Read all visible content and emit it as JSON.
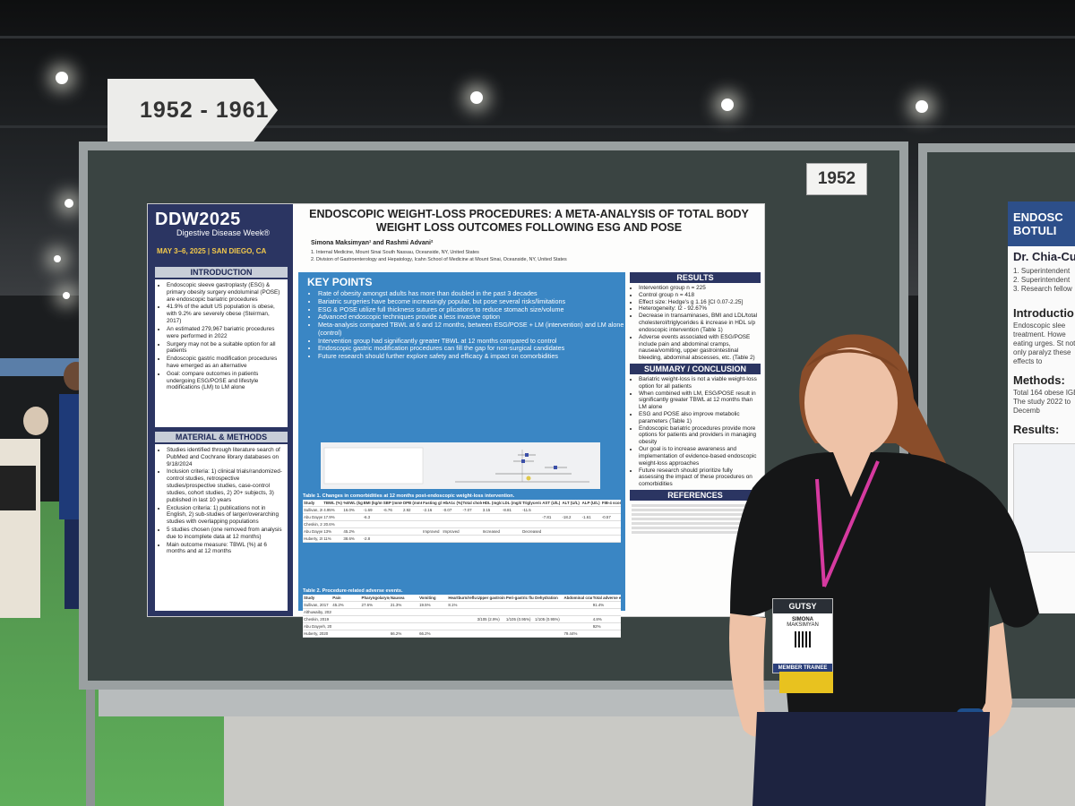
{
  "sign": {
    "years": "1952 - 1961"
  },
  "board": {
    "number": "1952"
  },
  "poster": {
    "logo": "DDW2025",
    "logo_sub": "Digestive Disease Week®",
    "dates": "MAY 3–6, 2025 | SAN DIEGO, CA",
    "title": "ENDOSCOPIC WEIGHT-LOSS PROCEDURES: A META-ANALYSIS OF TOTAL BODY WEIGHT LOSS OUTCOMES FOLLOWING ESG AND POSE",
    "authors": "Simona Maksimyan¹ and Rashmi Advani²",
    "affiliations": [
      "1. Internal Medicine, Mount Sinai South Nassau, Oceanside, NY, United States",
      "2. Division of Gastroenterology and Hepatology, Icahn School of Medicine at Mount Sinai, Oceanside, NY, United States"
    ],
    "introduction": {
      "title": "INTRODUCTION",
      "items": [
        "Endoscopic sleeve gastroplasty (ESG) & primary obesity surgery endoluminal (POSE) are endoscopic bariatric procedures",
        "41.9% of the adult US population is obese, with 9.2% are severely obese (Steirman, 2017)",
        "An estimated 279,967 bariatric procedures were performed in 2022",
        "Surgery may not be a suitable option for all patients",
        "Endoscopic gastric modification procedures have emerged as an alternative",
        "Goal: compare outcomes in patients undergoing ESG/POSE and lifestyle modifications (LM) to LM alone"
      ]
    },
    "methods": {
      "title": "MATERIAL & METHODS",
      "items": [
        "Studies identified through literature search of PubMed and Cochrane library databases on 9/18/2024",
        "Inclusion criteria: 1) clinical trials/randomized-control studies, retrospective studies/prospective studies, case-control studies, cohort studies, 2) 20+ subjects, 3) published in last 10 years",
        "Exclusion criteria: 1) publications not in English, 2) sub-studies of larger/overarching studies with overlapping populations",
        "5 studies chosen (one removed from analysis due to incomplete data at 12 months)",
        "Main outcome measure: TBWL (%) at 6 months and at 12 months"
      ]
    },
    "key_points": {
      "title": "KEY POINTS",
      "items": [
        "Rate of obesity amongst adults has more than doubled in the past 3 decades",
        "Bariatric surgeries have become increasingly popular, but pose several risks/limitations",
        "ESG & POSE utilize full thickness sutures or plications to reduce stomach size/volume",
        "Advanced endoscopic techniques provide a less invasive option",
        "Meta-analysis compared TBWL at 6 and 12 months, between ESG/POSE + LM (intervention) and LM alone (control)",
        "Intervention group had significantly greater TBWL at 12 months compared to control",
        "Endoscopic gastric modification procedures can fill the gap for non-surgical candidates",
        "Future research should further explore safety and efficacy & impact on comorbidities"
      ]
    },
    "table1": {
      "caption": "Table 1. Changes in comorbidities at 12 months post-endoscopic weight-loss intervention.",
      "headers": [
        "Study",
        "TBWL (%)",
        "%EWL (kg)",
        "BMI (kg/m²)",
        "SBP (mmHg)",
        "DPB (mmHg)",
        "Fasting glucose (mg/dL)",
        "HbA1c (%)",
        "Total cholesterol (mg/dL)",
        "HDL (mg/dL)",
        "LDL (mg/dL)",
        "Triglycerides (mg/dL)",
        "AST (U/L)",
        "ALT (U/L)",
        "ALP (U/L)",
        "FIB-4 score"
      ],
      "rows": [
        [
          "Sullivan, 2017",
          "4.95%",
          "16.0%",
          "-1.69",
          "-6.76",
          "2.92",
          "-2.16",
          "-0.07",
          "-7.07",
          "3.15",
          "-8.81",
          "-11.5",
          "",
          "",
          "",
          ""
        ],
        [
          "Abu Dayyeh, 2022",
          "17.9%",
          "",
          "-6.3",
          "",
          "",
          "",
          "",
          "",
          "",
          "",
          "",
          "-7.81",
          "-18.2",
          "-1.61",
          "-0.57"
        ],
        [
          "Cheskin, 2019",
          "20.6%",
          "",
          "",
          "",
          "",
          "",
          "",
          "",
          "",
          "",
          "",
          "",
          "",
          "",
          ""
        ],
        [
          "Abu Dayyeh, 2022",
          "13%",
          "45.2%",
          "",
          "",
          "",
          "Improved",
          "Improved",
          "",
          "Increased",
          "",
          "Decreased",
          "",
          "",
          "",
          ""
        ],
        [
          "Huberty, 2020",
          "11%",
          "38.6%",
          "-2.8",
          "",
          "",
          "",
          "",
          "",
          "",
          "",
          "",
          "",
          "",
          "",
          ""
        ]
      ]
    },
    "table2": {
      "caption": "Table 2. Procedure-related adverse events.",
      "headers": [
        "Study",
        "Pain",
        "Pharyngolaryngeal sore throat",
        "Nausea",
        "Vomiting",
        "Heartburn/reflux",
        "Upper gastrointestinal bleed",
        "Peri-gastric fluid collection",
        "Dehydration",
        "Abdominal cramps",
        "Total adverse events reported"
      ],
      "rows": [
        [
          "Sullivan, 2017",
          "45.2%",
          "27.6%",
          "21.3%",
          "19.5%",
          "8.1%",
          "",
          "",
          "",
          "",
          "91.4%"
        ],
        [
          "Althuwaiby, 2020",
          "",
          "",
          "",
          "",
          "",
          "",
          "",
          "",
          "",
          ""
        ],
        [
          "Cheskin, 2019",
          "",
          "",
          "",
          "",
          "",
          "3/105 (2.9%)",
          "1/105 (0.95%)",
          "1/105 (0.95%)",
          "",
          "4.8%"
        ],
        [
          "Abu Dayyeh, 2022",
          "",
          "",
          "",
          "",
          "",
          "",
          "",
          "",
          "",
          "92%"
        ],
        [
          "Huberty, 2020",
          "",
          "",
          "66.2%",
          "66.2%",
          "",
          "",
          "",
          "",
          "79.44%",
          ""
        ]
      ]
    },
    "results": {
      "title": "RESULTS",
      "items": [
        "Intervention group n = 225",
        "Control group n = 418",
        "Effect size: Hedge's g 1.16 [CI 0.07-2.25]",
        "Heterogeneity: I2 - 92.67%",
        "Decrease in transaminases, BMI and LDL/total cholesterol/triglycerides & increase in HDL s/p endoscopic intervention (Table 1)",
        "Adverse events associated with ESG/POSE include pain and abdominal cramps, nausea/vomiting, upper gastrointestinal bleeding, abdominal abscesses, etc. (Table 2)"
      ]
    },
    "summary": {
      "title": "SUMMARY / CONCLUSION",
      "items": [
        "Bariatric weight-loss is not a viable weight-loss option for all patients",
        "When combined with LM, ESG/POSE result in significantly greater TBWL at 12 months than LM alone",
        "ESG and POSE also improve metabolic parameters (Table 1)",
        "Endoscopic bariatric procedures provide more options for patients and providers in managing obesity",
        "Our goal is to increase awareness and implementation of evidence-based endoscopic weight-loss approaches",
        "Future research should prioritize fully assessing the impact of these procedures on comorbidities"
      ]
    },
    "references_title": "REFERENCES"
  },
  "poster2": {
    "title": "ENDOSC BOTULI",
    "author": "Dr. Chia-Cu",
    "affil": [
      "1. Superintendent",
      "2. Superintendent",
      "3. Research fellow"
    ],
    "intro": "Introductio",
    "intro_text": "Endoscopic slee treatment. Howe eating urges. St not only paralyz these effects to",
    "methods": "Methods:",
    "methods_text": "Total 164 obese IGB). The study 2022 to Decemb",
    "results": "Results:"
  },
  "badge": {
    "brand": "GUTSY",
    "name": "SIMONA",
    "surname": "MAKSIMYAN",
    "role": "MEMBER TRAINEE"
  }
}
